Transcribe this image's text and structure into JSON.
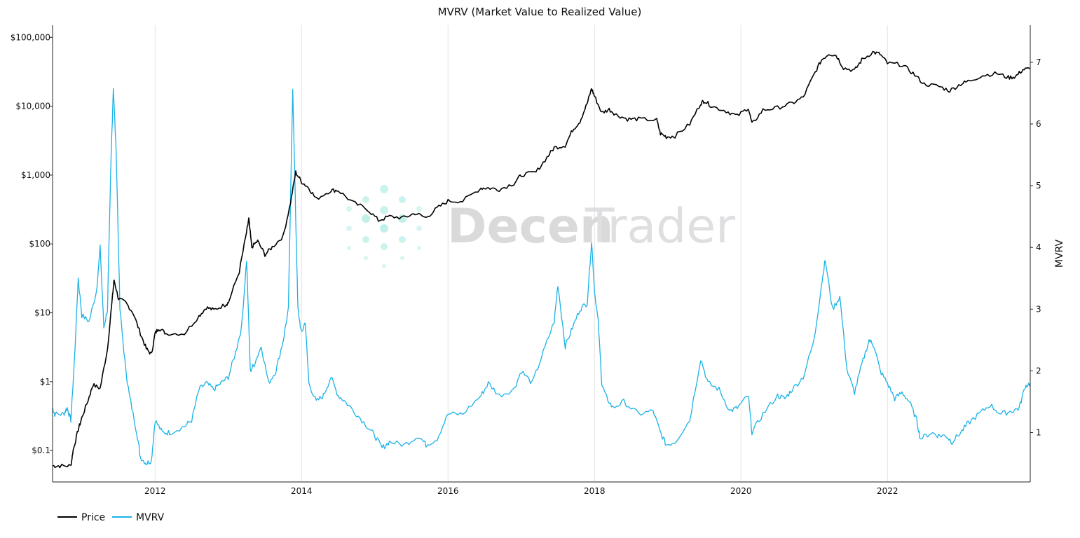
{
  "chart_data": {
    "type": "line",
    "title": "MVRV (Market Value to Realized Value)",
    "x_ticks": [
      "2012",
      "2014",
      "2016",
      "2018",
      "2020",
      "2022"
    ],
    "x_range": [
      2010.6,
      2023.95
    ],
    "y_left": {
      "label": "",
      "scale": "log",
      "range": [
        0.035,
        150000
      ],
      "ticks": [
        {
          "value": 0.1,
          "label": "$0.1"
        },
        {
          "value": 1,
          "label": "$1"
        },
        {
          "value": 10,
          "label": "$10"
        },
        {
          "value": 100,
          "label": "$100"
        },
        {
          "value": 1000,
          "label": "$1,000"
        },
        {
          "value": 10000,
          "label": "$10,000"
        },
        {
          "value": 100000,
          "label": "$100,000"
        }
      ]
    },
    "y_right": {
      "label": "MVRV",
      "scale": "linear",
      "range": [
        0.2,
        7.6
      ],
      "ticks": [
        {
          "value": 1,
          "label": "1"
        },
        {
          "value": 2,
          "label": "2"
        },
        {
          "value": 3,
          "label": "3"
        },
        {
          "value": 4,
          "label": "4"
        },
        {
          "value": 5,
          "label": "5"
        },
        {
          "value": 6,
          "label": "6"
        },
        {
          "value": 7,
          "label": "7"
        }
      ]
    },
    "series": [
      {
        "name": "Price",
        "axis": "left",
        "color": "#000000",
        "points": [
          [
            2010.6,
            0.06
          ],
          [
            2010.7,
            0.06
          ],
          [
            2010.85,
            0.06
          ],
          [
            2010.88,
            0.1
          ],
          [
            2010.95,
            0.2
          ],
          [
            2011.0,
            0.3
          ],
          [
            2011.1,
            0.6
          ],
          [
            2011.15,
            0.9
          ],
          [
            2011.25,
            0.8
          ],
          [
            2011.35,
            3
          ],
          [
            2011.42,
            18
          ],
          [
            2011.44,
            30
          ],
          [
            2011.5,
            16
          ],
          [
            2011.6,
            14
          ],
          [
            2011.7,
            10
          ],
          [
            2011.8,
            5
          ],
          [
            2011.88,
            3
          ],
          [
            2011.95,
            2.5
          ],
          [
            2012.0,
            5
          ],
          [
            2012.05,
            6
          ],
          [
            2012.15,
            5
          ],
          [
            2012.4,
            5
          ],
          [
            2012.6,
            9
          ],
          [
            2012.7,
            12
          ],
          [
            2012.8,
            11
          ],
          [
            2012.95,
            13
          ],
          [
            2013.0,
            14
          ],
          [
            2013.15,
            40
          ],
          [
            2013.25,
            150
          ],
          [
            2013.28,
            230
          ],
          [
            2013.32,
            90
          ],
          [
            2013.4,
            110
          ],
          [
            2013.5,
            70
          ],
          [
            2013.6,
            90
          ],
          [
            2013.75,
            130
          ],
          [
            2013.85,
            400
          ],
          [
            2013.92,
            1100
          ],
          [
            2014.0,
            800
          ],
          [
            2014.1,
            650
          ],
          [
            2014.2,
            450
          ],
          [
            2014.4,
            600
          ],
          [
            2014.5,
            600
          ],
          [
            2014.7,
            400
          ],
          [
            2014.9,
            320
          ],
          [
            2015.05,
            220
          ],
          [
            2015.2,
            250
          ],
          [
            2015.4,
            240
          ],
          [
            2015.55,
            280
          ],
          [
            2015.7,
            240
          ],
          [
            2015.85,
            330
          ],
          [
            2016.0,
            420
          ],
          [
            2016.2,
            420
          ],
          [
            2016.45,
            650
          ],
          [
            2016.55,
            650
          ],
          [
            2016.7,
            620
          ],
          [
            2016.9,
            760
          ],
          [
            2017.0,
            1000
          ],
          [
            2017.2,
            1100
          ],
          [
            2017.35,
            1800
          ],
          [
            2017.45,
            2500
          ],
          [
            2017.6,
            2700
          ],
          [
            2017.7,
            4500
          ],
          [
            2017.8,
            6000
          ],
          [
            2017.9,
            11000
          ],
          [
            2017.96,
            18000
          ],
          [
            2018.0,
            14000
          ],
          [
            2018.1,
            8000
          ],
          [
            2018.2,
            9000
          ],
          [
            2018.3,
            7500
          ],
          [
            2018.45,
            6500
          ],
          [
            2018.6,
            6500
          ],
          [
            2018.85,
            6300
          ],
          [
            2018.9,
            4000
          ],
          [
            2018.98,
            3600
          ],
          [
            2019.1,
            3700
          ],
          [
            2019.3,
            5500
          ],
          [
            2019.45,
            11000
          ],
          [
            2019.5,
            12000
          ],
          [
            2019.6,
            10000
          ],
          [
            2019.8,
            8500
          ],
          [
            2019.95,
            7200
          ],
          [
            2020.1,
            9500
          ],
          [
            2020.15,
            5500
          ],
          [
            2020.3,
            8800
          ],
          [
            2020.5,
            9500
          ],
          [
            2020.7,
            11000
          ],
          [
            2020.85,
            13500
          ],
          [
            2021.0,
            29000
          ],
          [
            2021.1,
            47000
          ],
          [
            2021.2,
            58000
          ],
          [
            2021.3,
            55000
          ],
          [
            2021.4,
            36000
          ],
          [
            2021.55,
            33000
          ],
          [
            2021.65,
            47000
          ],
          [
            2021.8,
            61000
          ],
          [
            2021.9,
            57000
          ],
          [
            2022.0,
            42000
          ],
          [
            2022.2,
            40000
          ],
          [
            2022.35,
            30000
          ],
          [
            2022.5,
            21000
          ],
          [
            2022.7,
            19500
          ],
          [
            2022.85,
            16800
          ],
          [
            2023.0,
            21000
          ],
          [
            2023.1,
            23000
          ],
          [
            2023.3,
            28000
          ],
          [
            2023.5,
            30000
          ],
          [
            2023.65,
            26000
          ],
          [
            2023.75,
            27000
          ],
          [
            2023.85,
            34000
          ],
          [
            2023.95,
            35000
          ]
        ]
      },
      {
        "name": "MVRV",
        "axis": "right",
        "color": "#1ab2e6",
        "points": [
          [
            2010.6,
            1.4
          ],
          [
            2010.63,
            1.3
          ],
          [
            2010.75,
            1.3
          ],
          [
            2010.8,
            1.4
          ],
          [
            2010.85,
            1.2
          ],
          [
            2010.9,
            2.2
          ],
          [
            2010.95,
            3.5
          ],
          [
            2011.0,
            2.9
          ],
          [
            2011.1,
            2.8
          ],
          [
            2011.2,
            3.3
          ],
          [
            2011.25,
            4.0
          ],
          [
            2011.3,
            2.7
          ],
          [
            2011.35,
            3.0
          ],
          [
            2011.4,
            5.5
          ],
          [
            2011.43,
            6.6
          ],
          [
            2011.47,
            5.5
          ],
          [
            2011.52,
            3.0
          ],
          [
            2011.6,
            2.0
          ],
          [
            2011.65,
            1.6
          ],
          [
            2011.75,
            1.0
          ],
          [
            2011.8,
            0.6
          ],
          [
            2011.88,
            0.5
          ],
          [
            2011.95,
            0.55
          ],
          [
            2012.0,
            1.2
          ],
          [
            2012.1,
            1.0
          ],
          [
            2012.2,
            1.0
          ],
          [
            2012.4,
            1.1
          ],
          [
            2012.5,
            1.2
          ],
          [
            2012.6,
            1.7
          ],
          [
            2012.7,
            1.8
          ],
          [
            2012.8,
            1.7
          ],
          [
            2012.9,
            1.8
          ],
          [
            2013.0,
            1.9
          ],
          [
            2013.1,
            2.3
          ],
          [
            2013.18,
            2.7
          ],
          [
            2013.25,
            3.8
          ],
          [
            2013.3,
            2.0
          ],
          [
            2013.35,
            2.1
          ],
          [
            2013.45,
            2.4
          ],
          [
            2013.55,
            1.8
          ],
          [
            2013.65,
            2.0
          ],
          [
            2013.75,
            2.5
          ],
          [
            2013.82,
            3.0
          ],
          [
            2013.88,
            6.6
          ],
          [
            2013.92,
            4.5
          ],
          [
            2013.95,
            3.0
          ],
          [
            2014.0,
            2.6
          ],
          [
            2014.05,
            2.8
          ],
          [
            2014.1,
            1.8
          ],
          [
            2014.2,
            1.5
          ],
          [
            2014.3,
            1.6
          ],
          [
            2014.4,
            1.9
          ],
          [
            2014.5,
            1.6
          ],
          [
            2014.6,
            1.5
          ],
          [
            2014.75,
            1.3
          ],
          [
            2014.9,
            1.1
          ],
          [
            2015.0,
            0.95
          ],
          [
            2015.1,
            0.75
          ],
          [
            2015.2,
            0.85
          ],
          [
            2015.4,
            0.8
          ],
          [
            2015.6,
            0.95
          ],
          [
            2015.7,
            0.8
          ],
          [
            2015.85,
            0.9
          ],
          [
            2016.0,
            1.3
          ],
          [
            2016.2,
            1.3
          ],
          [
            2016.45,
            1.6
          ],
          [
            2016.55,
            1.8
          ],
          [
            2016.7,
            1.6
          ],
          [
            2016.9,
            1.7
          ],
          [
            2017.0,
            2.0
          ],
          [
            2017.15,
            1.8
          ],
          [
            2017.3,
            2.3
          ],
          [
            2017.45,
            2.8
          ],
          [
            2017.5,
            3.4
          ],
          [
            2017.6,
            2.4
          ],
          [
            2017.7,
            2.7
          ],
          [
            2017.8,
            3.0
          ],
          [
            2017.9,
            3.1
          ],
          [
            2017.96,
            4.1
          ],
          [
            2018.0,
            3.3
          ],
          [
            2018.05,
            2.8
          ],
          [
            2018.1,
            1.8
          ],
          [
            2018.15,
            1.6
          ],
          [
            2018.25,
            1.4
          ],
          [
            2018.4,
            1.5
          ],
          [
            2018.6,
            1.3
          ],
          [
            2018.8,
            1.35
          ],
          [
            2018.9,
            1.0
          ],
          [
            2018.98,
            0.8
          ],
          [
            2019.1,
            0.85
          ],
          [
            2019.3,
            1.2
          ],
          [
            2019.45,
            2.2
          ],
          [
            2019.55,
            1.8
          ],
          [
            2019.7,
            1.7
          ],
          [
            2019.85,
            1.35
          ],
          [
            2019.95,
            1.4
          ],
          [
            2020.1,
            1.6
          ],
          [
            2020.15,
            1.0
          ],
          [
            2020.3,
            1.3
          ],
          [
            2020.5,
            1.6
          ],
          [
            2020.6,
            1.55
          ],
          [
            2020.7,
            1.7
          ],
          [
            2020.85,
            1.9
          ],
          [
            2021.0,
            2.5
          ],
          [
            2021.1,
            3.4
          ],
          [
            2021.15,
            3.8
          ],
          [
            2021.25,
            3.0
          ],
          [
            2021.35,
            3.2
          ],
          [
            2021.45,
            2.0
          ],
          [
            2021.55,
            1.65
          ],
          [
            2021.65,
            2.1
          ],
          [
            2021.75,
            2.5
          ],
          [
            2021.82,
            2.4
          ],
          [
            2021.9,
            2.0
          ],
          [
            2022.0,
            1.8
          ],
          [
            2022.1,
            1.55
          ],
          [
            2022.2,
            1.65
          ],
          [
            2022.3,
            1.5
          ],
          [
            2022.4,
            1.2
          ],
          [
            2022.45,
            0.9
          ],
          [
            2022.6,
            1.0
          ],
          [
            2022.7,
            0.95
          ],
          [
            2022.8,
            0.95
          ],
          [
            2022.88,
            0.85
          ],
          [
            2023.0,
            1.0
          ],
          [
            2023.1,
            1.15
          ],
          [
            2023.25,
            1.3
          ],
          [
            2023.4,
            1.45
          ],
          [
            2023.55,
            1.3
          ],
          [
            2023.7,
            1.35
          ],
          [
            2023.8,
            1.4
          ],
          [
            2023.88,
            1.75
          ],
          [
            2023.95,
            1.8
          ]
        ]
      }
    ],
    "legend": {
      "placement": "bottom-left",
      "items": [
        "Price",
        "MVRV"
      ]
    }
  },
  "watermark": {
    "text_bold": "Decen",
    "text_light": "Trader"
  }
}
